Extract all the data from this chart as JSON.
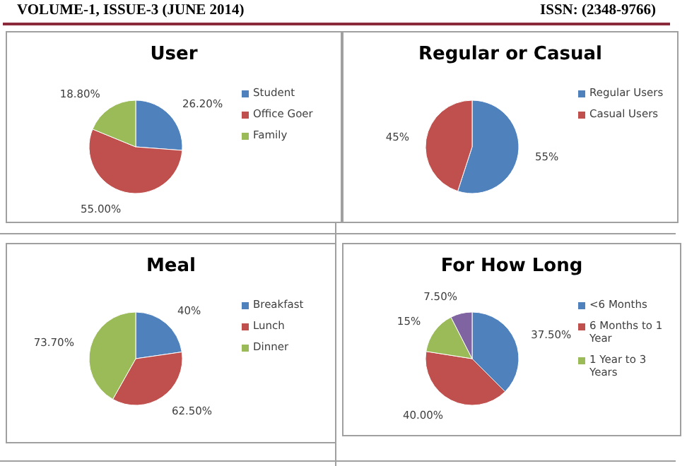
{
  "chart_data": [
    {
      "type": "pie",
      "title": "User",
      "categories": [
        "Student",
        "Office Goer",
        "Family"
      ],
      "values": [
        26.2,
        55.0,
        18.8
      ],
      "value_labels": [
        "26.20%",
        "55.00%",
        "18.80%"
      ],
      "colors": [
        "#4f81bd",
        "#c0504d",
        "#9bbb59"
      ],
      "legend": "right",
      "annotations": [
        "VOLUME-1, ISSUE-3 (JUNE 2014)",
        "ISSN: (2348-9766)"
      ]
    },
    {
      "type": "pie",
      "title": "Regular or Casual",
      "categories": [
        "Regular Users",
        "Casual Users"
      ],
      "values": [
        55,
        45
      ],
      "value_labels": [
        "55%",
        "45%"
      ],
      "colors": [
        "#4f81bd",
        "#c0504d"
      ],
      "legend": "right"
    },
    {
      "type": "pie",
      "title": "Meal",
      "categories": [
        "Breakfast",
        "Lunch",
        "Dinner"
      ],
      "values": [
        40,
        62.5,
        73.7
      ],
      "value_labels": [
        "40%",
        "62.50%",
        "73.70%"
      ],
      "colors": [
        "#4f81bd",
        "#c0504d",
        "#9bbb59"
      ],
      "legend": "right"
    },
    {
      "type": "pie",
      "title": "For How Long",
      "categories": [
        "<6 Months",
        "6 Months to 1 Year",
        "1 Year to 3 Years",
        null
      ],
      "values": [
        37.5,
        40.0,
        15,
        7.5
      ],
      "value_labels": [
        "37.50%",
        "40.00%",
        "15%",
        "7.50%"
      ],
      "colors": [
        "#4f81bd",
        "#c0504d",
        "#9bbb59",
        "#8064a2"
      ],
      "legend": "right"
    }
  ]
}
